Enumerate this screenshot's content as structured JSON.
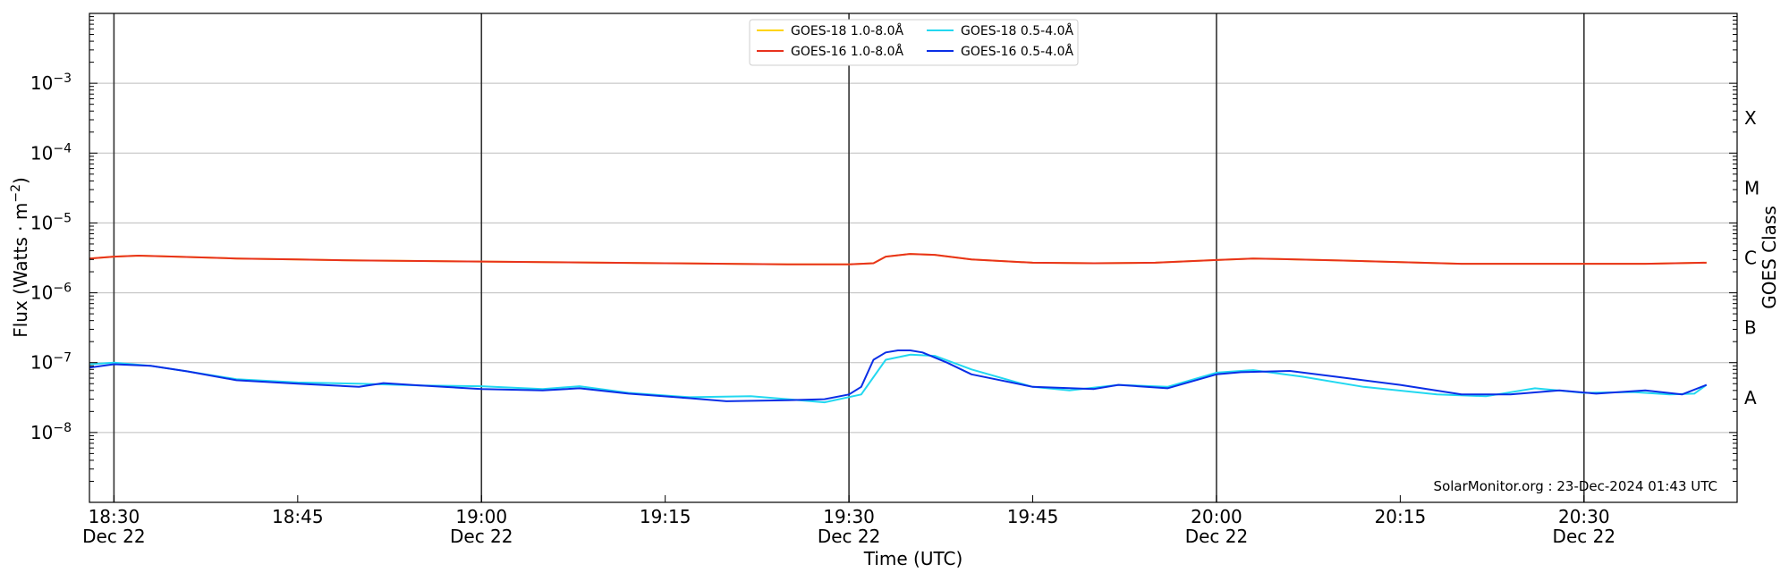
{
  "chart_data": {
    "type": "line",
    "xlabel": "Time (UTC)",
    "ylabel_left_base": "Flux (Watts · m",
    "ylabel_left_exp": "−2",
    "ylabel_left_close": ")",
    "ylabel_right": "GOES Class",
    "credit": "SolarMonitor.org : 23-Dec-2024 01:43 UTC",
    "y_scale": "log",
    "ylim": [
      1e-09,
      0.01
    ],
    "xlim_minutes_from_1830": [
      -2.0,
      132.5
    ],
    "grid": "horizontal at decades",
    "legend_position": "top-center",
    "vertical_markers": [
      "18:30",
      "19:00",
      "19:30",
      "20:00",
      "20:30"
    ],
    "x_ticks": [
      {
        "t": "18:30",
        "line1": "18:30",
        "line2": "Dec 22"
      },
      {
        "t": "18:45",
        "line1": "18:45",
        "line2": ""
      },
      {
        "t": "19:00",
        "line1": "19:00",
        "line2": "Dec 22"
      },
      {
        "t": "19:15",
        "line1": "19:15",
        "line2": ""
      },
      {
        "t": "19:30",
        "line1": "19:30",
        "line2": "Dec 22"
      },
      {
        "t": "19:45",
        "line1": "19:45",
        "line2": ""
      },
      {
        "t": "20:00",
        "line1": "20:00",
        "line2": "Dec 22"
      },
      {
        "t": "20:15",
        "line1": "20:15",
        "line2": ""
      },
      {
        "t": "20:30",
        "line1": "20:30",
        "line2": "Dec 22"
      }
    ],
    "y_ticks": [
      {
        "value": 1e-08,
        "base": "10",
        "exp": "−8"
      },
      {
        "value": 1e-07,
        "base": "10",
        "exp": "−7"
      },
      {
        "value": 1e-06,
        "base": "10",
        "exp": "−6"
      },
      {
        "value": 1e-05,
        "base": "10",
        "exp": "−5"
      },
      {
        "value": 0.0001,
        "base": "10",
        "exp": "−4"
      },
      {
        "value": 0.001,
        "base": "10",
        "exp": "−3"
      }
    ],
    "class_labels": [
      {
        "label": "A",
        "value": 3.16e-08
      },
      {
        "label": "B",
        "value": 3.16e-07
      },
      {
        "label": "C",
        "value": 3.16e-06
      },
      {
        "label": "M",
        "value": 3.16e-05
      },
      {
        "label": "X",
        "value": 0.000316
      }
    ],
    "series": [
      {
        "name": "GOES-18 1.0-8.0Å",
        "color": "#ffd400",
        "x": [
          "18:28",
          "18:30",
          "18:32",
          "18:35",
          "18:40",
          "18:45",
          "18:50",
          "18:55",
          "19:00",
          "19:05",
          "19:10",
          "19:15",
          "19:20",
          "19:25",
          "19:30",
          "19:32",
          "19:33",
          "19:35",
          "19:37",
          "19:40",
          "19:45",
          "19:50",
          "19:55",
          "20:00",
          "20:03",
          "20:05",
          "20:10",
          "20:15",
          "20:20",
          "20:25",
          "20:30",
          "20:35",
          "20:40"
        ],
        "y": [
          3.1e-06,
          3.3e-06,
          3.4e-06,
          3.3e-06,
          3.1e-06,
          3e-06,
          2.9e-06,
          2.85e-06,
          2.8e-06,
          2.75e-06,
          2.7e-06,
          2.65e-06,
          2.6e-06,
          2.55e-06,
          2.55e-06,
          2.65e-06,
          3.3e-06,
          3.6e-06,
          3.5e-06,
          3e-06,
          2.7e-06,
          2.65e-06,
          2.7e-06,
          2.95e-06,
          3.1e-06,
          3.05e-06,
          2.9e-06,
          2.75e-06,
          2.6e-06,
          2.6e-06,
          2.6e-06,
          2.6e-06,
          2.7e-06
        ]
      },
      {
        "name": "GOES-16 1.0-8.0Å",
        "color": "#e8321e",
        "x": [
          "18:28",
          "18:30",
          "18:32",
          "18:35",
          "18:40",
          "18:45",
          "18:50",
          "18:55",
          "19:00",
          "19:05",
          "19:10",
          "19:15",
          "19:20",
          "19:25",
          "19:30",
          "19:32",
          "19:33",
          "19:35",
          "19:37",
          "19:40",
          "19:45",
          "19:50",
          "19:55",
          "20:00",
          "20:03",
          "20:05",
          "20:10",
          "20:15",
          "20:20",
          "20:25",
          "20:30",
          "20:35",
          "20:40"
        ],
        "y": [
          3.1e-06,
          3.3e-06,
          3.4e-06,
          3.3e-06,
          3.1e-06,
          3e-06,
          2.9e-06,
          2.85e-06,
          2.8e-06,
          2.75e-06,
          2.7e-06,
          2.65e-06,
          2.6e-06,
          2.55e-06,
          2.55e-06,
          2.65e-06,
          3.3e-06,
          3.6e-06,
          3.5e-06,
          3e-06,
          2.7e-06,
          2.65e-06,
          2.7e-06,
          2.95e-06,
          3.1e-06,
          3.05e-06,
          2.9e-06,
          2.75e-06,
          2.6e-06,
          2.6e-06,
          2.6e-06,
          2.6e-06,
          2.7e-06
        ]
      },
      {
        "name": "GOES-18 0.5-4.0Å",
        "color": "#22d8f0",
        "x": [
          "18:28",
          "18:30",
          "18:33",
          "18:36",
          "18:40",
          "18:45",
          "18:50",
          "18:55",
          "19:00",
          "19:05",
          "19:08",
          "19:12",
          "19:17",
          "19:22",
          "19:25",
          "19:28",
          "19:31",
          "19:33",
          "19:35",
          "19:37",
          "19:40",
          "19:45",
          "19:48",
          "19:52",
          "19:56",
          "20:00",
          "20:03",
          "20:07",
          "20:12",
          "20:18",
          "20:22",
          "20:26",
          "20:30",
          "20:34",
          "20:37",
          "20:39",
          "20:40"
        ],
        "y": [
          9.5e-08,
          1e-07,
          9e-08,
          7.5e-08,
          5.8e-08,
          5.2e-08,
          5e-08,
          4.7e-08,
          4.6e-08,
          4.2e-08,
          4.6e-08,
          3.7e-08,
          3.2e-08,
          3.3e-08,
          3e-08,
          2.7e-08,
          3.5e-08,
          1.1e-07,
          1.3e-07,
          1.25e-07,
          8e-08,
          4.5e-08,
          4e-08,
          4.8e-08,
          4.5e-08,
          7.2e-08,
          7.8e-08,
          6.3e-08,
          4.5e-08,
          3.5e-08,
          3.3e-08,
          4.3e-08,
          3.7e-08,
          3.8e-08,
          3.5e-08,
          3.6e-08,
          4.8e-08
        ]
      },
      {
        "name": "GOES-16 0.5-4.0Å",
        "color": "#0a2ee6",
        "x": [
          "18:28",
          "18:30",
          "18:33",
          "18:36",
          "18:40",
          "18:45",
          "18:50",
          "18:52",
          "18:55",
          "19:00",
          "19:05",
          "19:08",
          "19:12",
          "19:17",
          "19:20",
          "19:25",
          "19:28",
          "19:30",
          "19:31",
          "19:32",
          "19:33",
          "19:34",
          "19:35",
          "19:36",
          "19:38",
          "19:40",
          "19:45",
          "19:50",
          "19:52",
          "19:56",
          "20:00",
          "20:02",
          "20:06",
          "20:10",
          "20:15",
          "20:20",
          "20:24",
          "20:28",
          "20:31",
          "20:35",
          "20:38",
          "20:40"
        ],
        "y": [
          8.5e-08,
          9.5e-08,
          9e-08,
          7.5e-08,
          5.6e-08,
          5e-08,
          4.5e-08,
          5.1e-08,
          4.7e-08,
          4.2e-08,
          4e-08,
          4.3e-08,
          3.6e-08,
          3.1e-08,
          2.8e-08,
          2.9e-08,
          3e-08,
          3.5e-08,
          4.5e-08,
          1.1e-07,
          1.4e-07,
          1.5e-07,
          1.5e-07,
          1.4e-07,
          1e-07,
          6.8e-08,
          4.5e-08,
          4.2e-08,
          4.8e-08,
          4.3e-08,
          6.8e-08,
          7.3e-08,
          7.6e-08,
          6.2e-08,
          4.8e-08,
          3.5e-08,
          3.5e-08,
          4e-08,
          3.6e-08,
          4e-08,
          3.5e-08,
          4.8e-08
        ]
      }
    ]
  }
}
